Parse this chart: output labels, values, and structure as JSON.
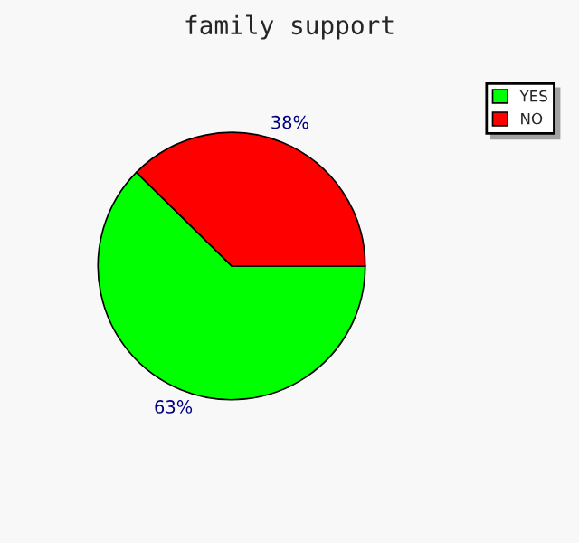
{
  "chart_data": {
    "type": "pie",
    "title": "family support",
    "categories": [
      "YES",
      "NO"
    ],
    "values": [
      63,
      38
    ],
    "colors": [
      "#00ff00",
      "#ff0000"
    ],
    "value_labels": [
      "63%",
      "38%"
    ],
    "legend": "top right"
  }
}
